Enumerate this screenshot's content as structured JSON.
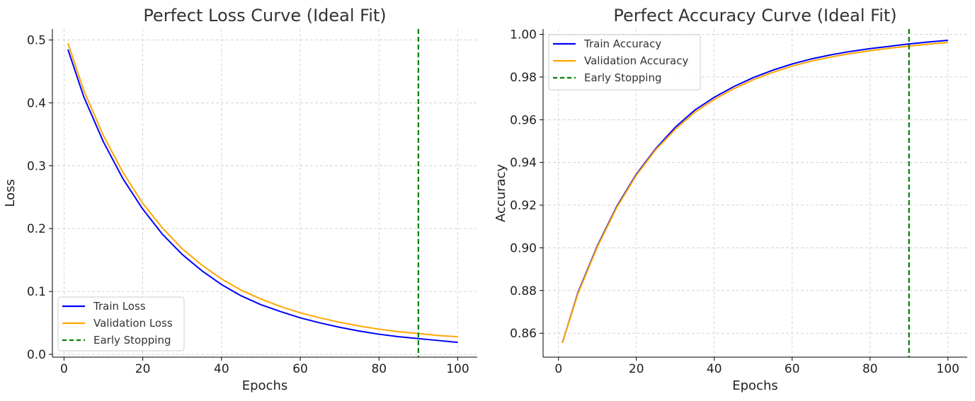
{
  "chart_data": [
    {
      "type": "line",
      "title": "Perfect Loss Curve (Ideal Fit)",
      "xlabel": "Epochs",
      "ylabel": "Loss",
      "xlim": [
        -2.95,
        104.95
      ],
      "ylim": [
        -0.0045,
        0.5175
      ],
      "xticks": [
        0,
        20,
        40,
        60,
        80,
        100
      ],
      "xtick_labels": [
        "0",
        "20",
        "40",
        "60",
        "80",
        "100"
      ],
      "yticks": [
        0.0,
        0.1,
        0.2,
        0.3,
        0.4,
        0.5
      ],
      "ytick_labels": [
        "0.0",
        "0.1",
        "0.2",
        "0.3",
        "0.4",
        "0.5"
      ],
      "grid": true,
      "legend_position": "lower-left",
      "x": [
        1,
        5,
        10,
        15,
        20,
        25,
        30,
        35,
        40,
        45,
        50,
        55,
        60,
        65,
        70,
        75,
        80,
        85,
        90,
        95,
        100
      ],
      "series": [
        {
          "name": "Train Loss",
          "color": "#0000ff",
          "style": "solid",
          "values": [
            0.485,
            0.41,
            0.338,
            0.279,
            0.231,
            0.191,
            0.159,
            0.133,
            0.111,
            0.093,
            0.079,
            0.068,
            0.058,
            0.05,
            0.043,
            0.037,
            0.032,
            0.028,
            0.025,
            0.022,
            0.019
          ]
        },
        {
          "name": "Validation Loss",
          "color": "#ffa500",
          "style": "solid",
          "values": [
            0.495,
            0.42,
            0.348,
            0.289,
            0.24,
            0.201,
            0.168,
            0.142,
            0.12,
            0.102,
            0.088,
            0.076,
            0.066,
            0.058,
            0.051,
            0.045,
            0.04,
            0.036,
            0.033,
            0.03,
            0.028
          ]
        }
      ],
      "vlines": [
        {
          "name": "Early Stopping",
          "x": 90,
          "color": "#008000",
          "style": "dashed"
        }
      ]
    },
    {
      "type": "line",
      "title": "Perfect Accuracy Curve (Ideal Fit)",
      "xlabel": "Epochs",
      "ylabel": "Accuracy",
      "xlim": [
        -3.95,
        104.95
      ],
      "ylim": [
        0.8488,
        1.0025
      ],
      "xticks": [
        0,
        20,
        40,
        60,
        80,
        100
      ],
      "xtick_labels": [
        "0",
        "20",
        "40",
        "60",
        "80",
        "100"
      ],
      "yticks": [
        0.86,
        0.88,
        0.9,
        0.92,
        0.94,
        0.96,
        0.98,
        1.0
      ],
      "ytick_labels": [
        "0.86",
        "0.88",
        "0.90",
        "0.92",
        "0.94",
        "0.96",
        "0.98",
        "1.00"
      ],
      "grid": true,
      "legend_position": "upper-left",
      "x": [
        1,
        5,
        10,
        15,
        20,
        25,
        30,
        35,
        40,
        45,
        50,
        55,
        60,
        65,
        70,
        75,
        80,
        85,
        90,
        95,
        100
      ],
      "series": [
        {
          "name": "Train Accuracy",
          "color": "#0000ff",
          "style": "solid",
          "values": [
            0.8555,
            0.879,
            0.901,
            0.9195,
            0.9345,
            0.9465,
            0.9565,
            0.9645,
            0.9705,
            0.9755,
            0.9797,
            0.9832,
            0.9861,
            0.9885,
            0.9904,
            0.992,
            0.9933,
            0.9944,
            0.9955,
            0.9964,
            0.9972
          ]
        },
        {
          "name": "Validation Accuracy",
          "color": "#ffa500",
          "style": "solid",
          "values": [
            0.8555,
            0.8785,
            0.9005,
            0.919,
            0.934,
            0.946,
            0.9555,
            0.9635,
            0.9695,
            0.9745,
            0.9787,
            0.9822,
            0.9851,
            0.9875,
            0.9894,
            0.991,
            0.9923,
            0.9935,
            0.9945,
            0.9954,
            0.9962
          ]
        }
      ],
      "vlines": [
        {
          "name": "Early Stopping",
          "x": 90,
          "color": "#008000",
          "style": "dashed"
        }
      ]
    }
  ]
}
